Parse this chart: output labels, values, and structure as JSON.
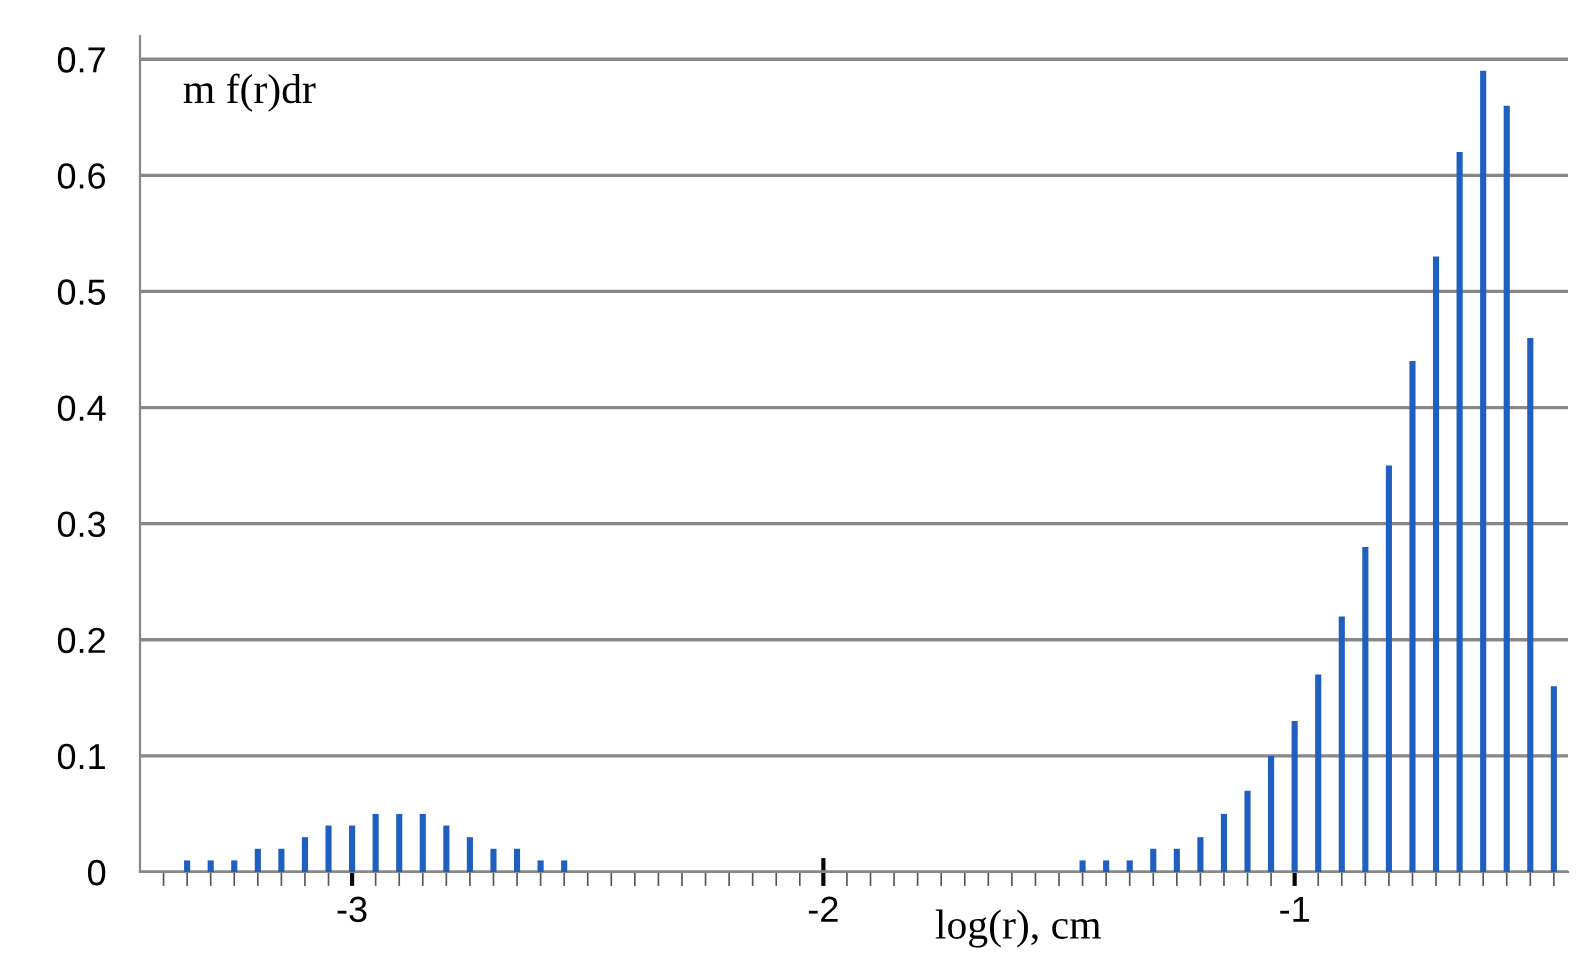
{
  "chart_data": {
    "type": "bar",
    "xlabel": "log(r), cm",
    "ylabel": "m f(r)dr",
    "color": "#1f5fbf",
    "x": [
      -3.35,
      -3.3,
      -3.25,
      -3.2,
      -3.15,
      -3.1,
      -3.05,
      -3.0,
      -2.95,
      -2.9,
      -2.85,
      -2.8,
      -2.75,
      -2.7,
      -2.65,
      -2.6,
      -2.55,
      -1.45,
      -1.4,
      -1.35,
      -1.3,
      -1.25,
      -1.2,
      -1.15,
      -1.1,
      -1.05,
      -1.0,
      -0.95,
      -0.9,
      -0.85,
      -0.8,
      -0.75,
      -0.7,
      -0.65,
      -0.6,
      -0.55,
      -0.5,
      -0.45
    ],
    "values": [
      0.01,
      0.01,
      0.01,
      0.02,
      0.02,
      0.03,
      0.04,
      0.04,
      0.05,
      0.05,
      0.05,
      0.04,
      0.03,
      0.02,
      0.02,
      0.01,
      0.01,
      0.01,
      0.01,
      0.01,
      0.02,
      0.02,
      0.03,
      0.05,
      0.07,
      0.1,
      0.13,
      0.17,
      0.22,
      0.28,
      0.35,
      0.44,
      0.53,
      0.62,
      0.69,
      0.66,
      0.46,
      0.16
    ],
    "xlim": [
      -3.45,
      -0.42
    ],
    "ylim": [
      0,
      0.72
    ],
    "yticks": [
      0,
      0.1,
      0.2,
      0.3,
      0.4,
      0.5,
      0.6,
      0.7
    ],
    "xticks": [
      {
        "value": -3.4,
        "label": null
      },
      {
        "value": -3.35,
        "label": null
      },
      {
        "value": -3.3,
        "label": null
      },
      {
        "value": -3.25,
        "label": null
      },
      {
        "value": -3.2,
        "label": null
      },
      {
        "value": -3.15,
        "label": null
      },
      {
        "value": -3.1,
        "label": null
      },
      {
        "value": -3.05,
        "label": null
      },
      -3,
      {
        "value": -2.95,
        "label": null
      },
      {
        "value": -2.9,
        "label": null
      },
      {
        "value": -2.85,
        "label": null
      },
      {
        "value": -2.8,
        "label": null
      },
      {
        "value": -2.75,
        "label": null
      },
      {
        "value": -2.7,
        "label": null
      },
      {
        "value": -2.65,
        "label": null
      },
      {
        "value": -2.6,
        "label": null
      },
      {
        "value": -2.55,
        "label": null
      },
      {
        "value": -2.5,
        "label": null
      },
      {
        "value": -2.45,
        "label": null
      },
      {
        "value": -2.4,
        "label": null
      },
      {
        "value": -2.35,
        "label": null
      },
      {
        "value": -2.3,
        "label": null
      },
      {
        "value": -2.25,
        "label": null
      },
      {
        "value": -2.2,
        "label": null
      },
      {
        "value": -2.15,
        "label": null
      },
      {
        "value": -2.1,
        "label": null
      },
      {
        "value": -2.05,
        "label": null
      },
      -2,
      {
        "value": -1.95,
        "label": null
      },
      {
        "value": -1.9,
        "label": null
      },
      {
        "value": -1.85,
        "label": null
      },
      {
        "value": -1.8,
        "label": null
      },
      {
        "value": -1.75,
        "label": null
      },
      {
        "value": -1.7,
        "label": null
      },
      {
        "value": -1.65,
        "label": null
      },
      {
        "value": -1.6,
        "label": null
      },
      {
        "value": -1.55,
        "label": null
      },
      {
        "value": -1.5,
        "label": null
      },
      {
        "value": -1.45,
        "label": null
      },
      {
        "value": -1.4,
        "label": null
      },
      {
        "value": -1.35,
        "label": null
      },
      {
        "value": -1.3,
        "label": null
      },
      {
        "value": -1.25,
        "label": null
      },
      {
        "value": -1.2,
        "label": null
      },
      {
        "value": -1.15,
        "label": null
      },
      {
        "value": -1.1,
        "label": null
      },
      {
        "value": -1.05,
        "label": null
      },
      -1,
      {
        "value": -0.95,
        "label": null
      },
      {
        "value": -0.9,
        "label": null
      },
      {
        "value": -0.85,
        "label": null
      },
      {
        "value": -0.8,
        "label": null
      },
      {
        "value": -0.75,
        "label": null
      },
      {
        "value": -0.7,
        "label": null
      },
      {
        "value": -0.65,
        "label": null
      },
      {
        "value": -0.6,
        "label": null
      },
      {
        "value": -0.55,
        "label": null
      },
      {
        "value": -0.5,
        "label": null
      },
      {
        "value": -0.45,
        "label": null
      }
    ],
    "grid": "y",
    "legend": false
  }
}
